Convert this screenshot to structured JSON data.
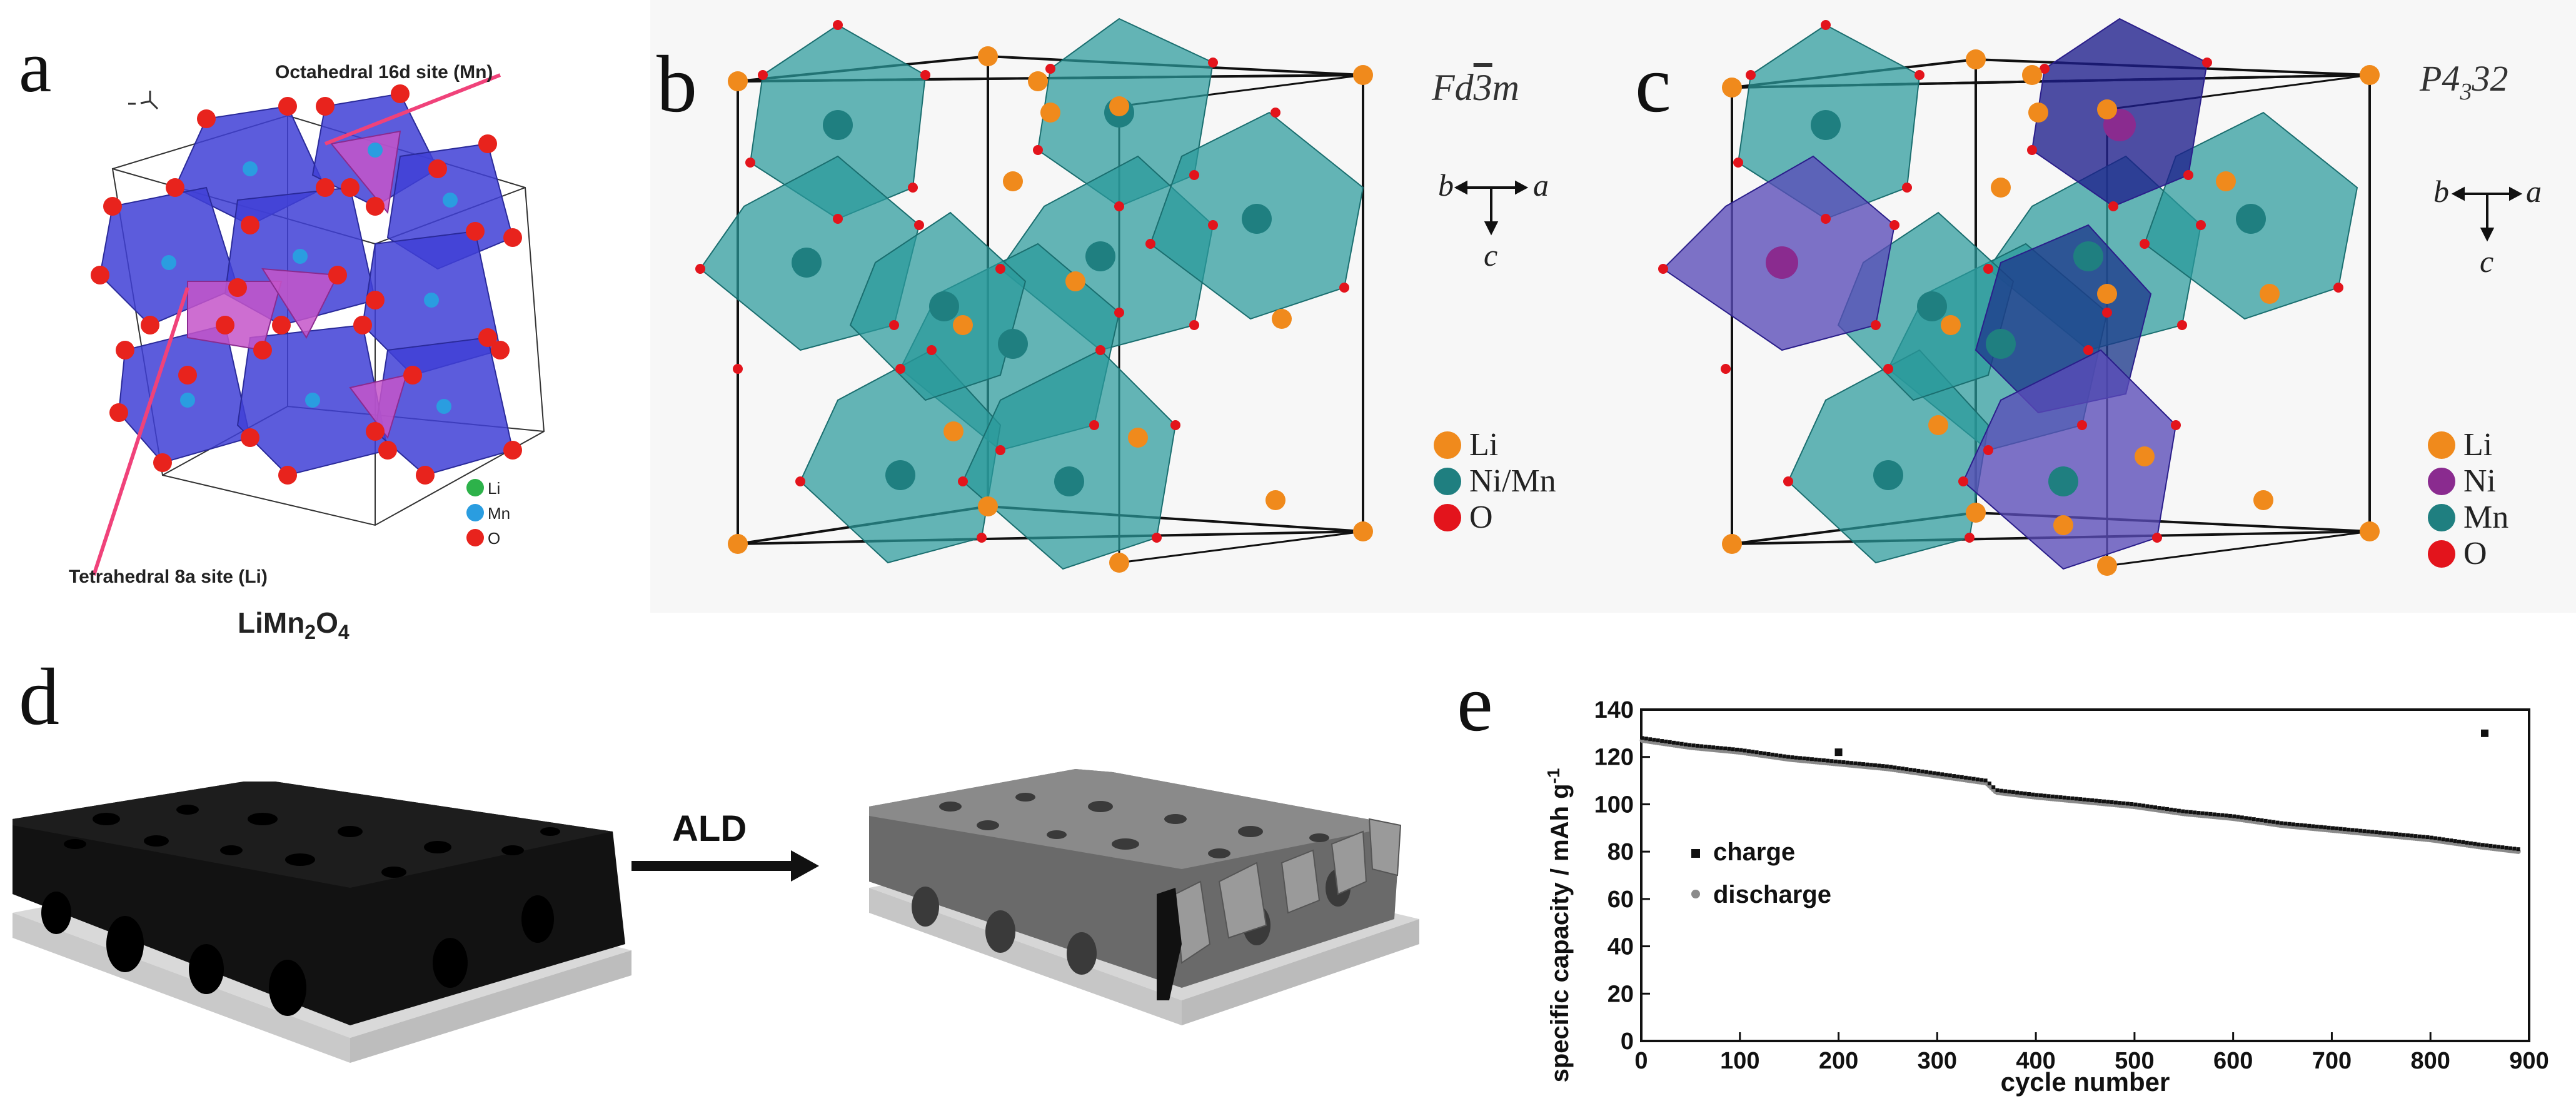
{
  "panels": {
    "a": {
      "letter": "a",
      "label_octahedral": "Octahedral 16d site (Mn)",
      "label_tetrahedral": "Tetrahedral 8a site (Li)",
      "compound": {
        "base": "LiMn",
        "sub1": "2",
        "mid": "O",
        "sub2": "4"
      },
      "legend": [
        {
          "label": "Li",
          "color": "#2db24a"
        },
        {
          "label": "Mn",
          "color": "#2a9de0"
        },
        {
          "label": "O",
          "color": "#e8231d"
        }
      ]
    },
    "b": {
      "letter": "b",
      "space_group": {
        "pre": "Fd",
        "bar": "3",
        "post": "m"
      },
      "axes": {
        "horizontal_left": "b",
        "horizontal_right": "a",
        "vertical": "c"
      },
      "legend": [
        {
          "label": "Li",
          "color": "#f08a1c"
        },
        {
          "label": "Ni/Mn",
          "color": "#1f7f80"
        },
        {
          "label": "O",
          "color": "#e3141c"
        }
      ]
    },
    "c": {
      "letter": "c",
      "space_group": {
        "pre": "P4",
        "sub": "3",
        "post": "32"
      },
      "axes": {
        "horizontal_left": "b",
        "horizontal_right": "a",
        "vertical": "c"
      },
      "legend": [
        {
          "label": "Li",
          "color": "#f08a1c"
        },
        {
          "label": "Ni",
          "color": "#8a2b8f"
        },
        {
          "label": "Mn",
          "color": "#1f7f80"
        },
        {
          "label": "O",
          "color": "#e3141c"
        }
      ]
    },
    "d": {
      "letter": "d",
      "arrow_label": "ALD"
    },
    "e": {
      "letter": "e"
    }
  },
  "chart_data": {
    "type": "scatter",
    "xlabel": "cycle number",
    "ylabel": "specific capacity / mAh g",
    "ylabel_superscript": "-1",
    "xlim": [
      0,
      900
    ],
    "ylim": [
      0,
      140
    ],
    "xticks": [
      "0",
      "100",
      "200",
      "300",
      "400",
      "500",
      "600",
      "700",
      "800",
      "900"
    ],
    "yticks": [
      "0",
      "20",
      "40",
      "60",
      "80",
      "100",
      "120",
      "140"
    ],
    "series": [
      {
        "name": "charge",
        "marker": "square",
        "color": "#111111",
        "x": [
          1,
          50,
          100,
          150,
          200,
          250,
          300,
          350,
          360,
          400,
          450,
          500,
          550,
          600,
          650,
          700,
          750,
          800,
          850,
          855,
          890
        ],
        "y": [
          128,
          125,
          123,
          120,
          118,
          116,
          113,
          110,
          106,
          104,
          102,
          100,
          97,
          95,
          92,
          90,
          88,
          86,
          83,
          130,
          81
        ]
      },
      {
        "name": "discharge",
        "marker": "circle",
        "color": "#8a8a8a",
        "x": [
          1,
          50,
          100,
          150,
          200,
          250,
          300,
          350,
          360,
          400,
          450,
          500,
          550,
          600,
          650,
          700,
          750,
          800,
          850,
          890
        ],
        "y": [
          127,
          124,
          122,
          119,
          117,
          115,
          112,
          109,
          105,
          103,
          101,
          99,
          96,
          94,
          91,
          89,
          87,
          85,
          82,
          80
        ]
      }
    ],
    "anomalies": [
      {
        "x": 200,
        "y": 122
      },
      {
        "x": 855,
        "y": 130
      }
    ],
    "legend_placement": "left-middle"
  }
}
